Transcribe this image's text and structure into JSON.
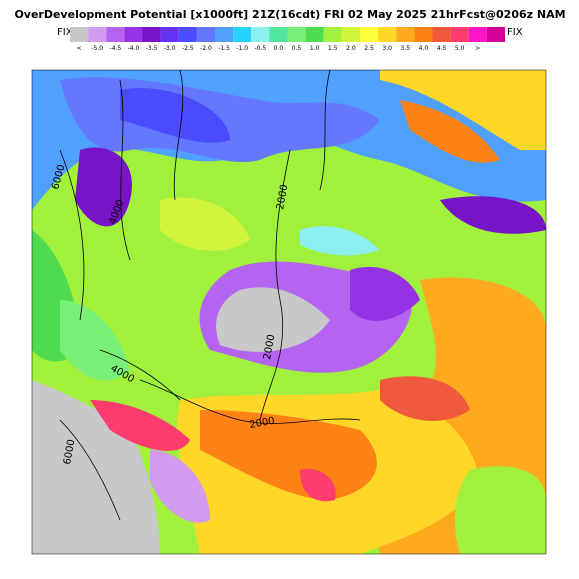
{
  "header": {
    "title": "OverDevelopment Potential [x1000ft] 21Z(16cdt) FRI 02 May 2025 21hrFcst@0206z NAM",
    "left_tag": "FIX",
    "right_tag": "FIX"
  },
  "colorbar": {
    "labels": [
      "<",
      "-5.0",
      "-4.5",
      "-4.0",
      "-3.5",
      "-3.0",
      "-2.5",
      "-2.0",
      "-1.5",
      "-1.0",
      "-0.5",
      "0.0",
      "0.5",
      "1.0",
      "1.5",
      "2.0",
      "2.5",
      "3.0",
      "3.5",
      "4.0",
      "4.5",
      "5.0",
      ">"
    ],
    "colors": [
      "#c8c8c8",
      "#d29bf0",
      "#b464f0",
      "#9632e6",
      "#7814c8",
      "#6432f0",
      "#4b4bff",
      "#6478ff",
      "#50a0ff",
      "#28d2ff",
      "#8cf0f0",
      "#50e6a0",
      "#78f078",
      "#50dc50",
      "#a0f03c",
      "#d2f53c",
      "#ffff3c",
      "#ffd728",
      "#ffaa1e",
      "#ff8214",
      "#f05a3c",
      "#ff3c6e",
      "#ff14c8",
      "#d20096"
    ]
  },
  "contours": [
    "6000",
    "4000",
    "2000",
    "2000",
    "4000",
    "2000",
    "6000"
  ]
}
